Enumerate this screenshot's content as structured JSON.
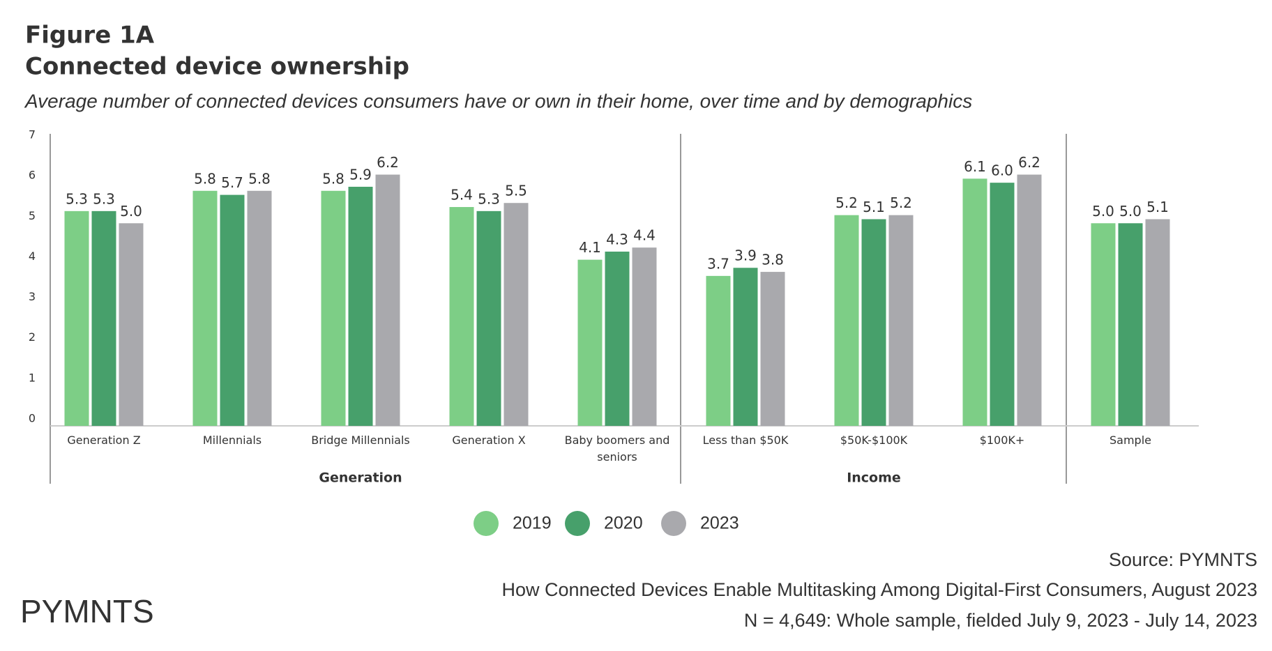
{
  "chart_data": {
    "type": "bar",
    "figure_label": "Figure 1A",
    "title": "Connected device ownership",
    "subtitle": "Average number of connected devices consumers have or own in their home, over time and by demographics",
    "categories": [
      "Generation Z",
      "Millennials",
      "Bridge Millennials",
      "Generation X",
      "Baby boomers and seniors",
      "Less than $50K",
      "$50K-$100K",
      "$100K+",
      "Sample"
    ],
    "category_groups": [
      "Generation",
      "Generation",
      "Generation",
      "Generation",
      "Generation",
      "Income",
      "Income",
      "Income",
      null
    ],
    "series": [
      {
        "name": "2019",
        "color": "#7dce86",
        "values": [
          5.3,
          5.8,
          5.8,
          5.4,
          4.1,
          3.7,
          5.2,
          6.1,
          5.0
        ],
        "value_labels": [
          "5.3",
          "5.8",
          "5.8",
          "5.4",
          "4.1",
          "3.7",
          "5.2",
          "6.1",
          "5.0"
        ]
      },
      {
        "name": "2020",
        "color": "#47a06b",
        "values": [
          5.3,
          5.7,
          5.9,
          5.3,
          4.3,
          3.9,
          5.1,
          6.0,
          5.0
        ],
        "value_labels": [
          "5.3",
          "5.7",
          "5.9",
          "5.3",
          "4.3",
          "3.9",
          "5.1",
          "6.0",
          "5.0"
        ]
      },
      {
        "name": "2023",
        "color": "#a9a9ad",
        "values": [
          5.0,
          5.8,
          6.2,
          5.5,
          4.4,
          3.8,
          5.2,
          6.2,
          5.1
        ],
        "value_labels": [
          "5.0",
          "5.8",
          "6.2",
          "5.5",
          "4.4",
          "3.8",
          "5.2",
          "6.2",
          "5.1"
        ]
      }
    ],
    "ylim": [
      0,
      7
    ],
    "yticks": [
      0,
      1,
      2,
      3,
      4,
      5,
      6,
      7
    ],
    "grid": false,
    "legend": "bottom"
  },
  "footer": {
    "source": "Source: PYMNTS",
    "report": "How Connected Devices Enable Multitasking Among Digital-First Consumers, August 2023",
    "sample": "N = 4,649: Whole sample, fielded July 9, 2023 - July 14, 2023"
  },
  "logo": "PYMNTS"
}
